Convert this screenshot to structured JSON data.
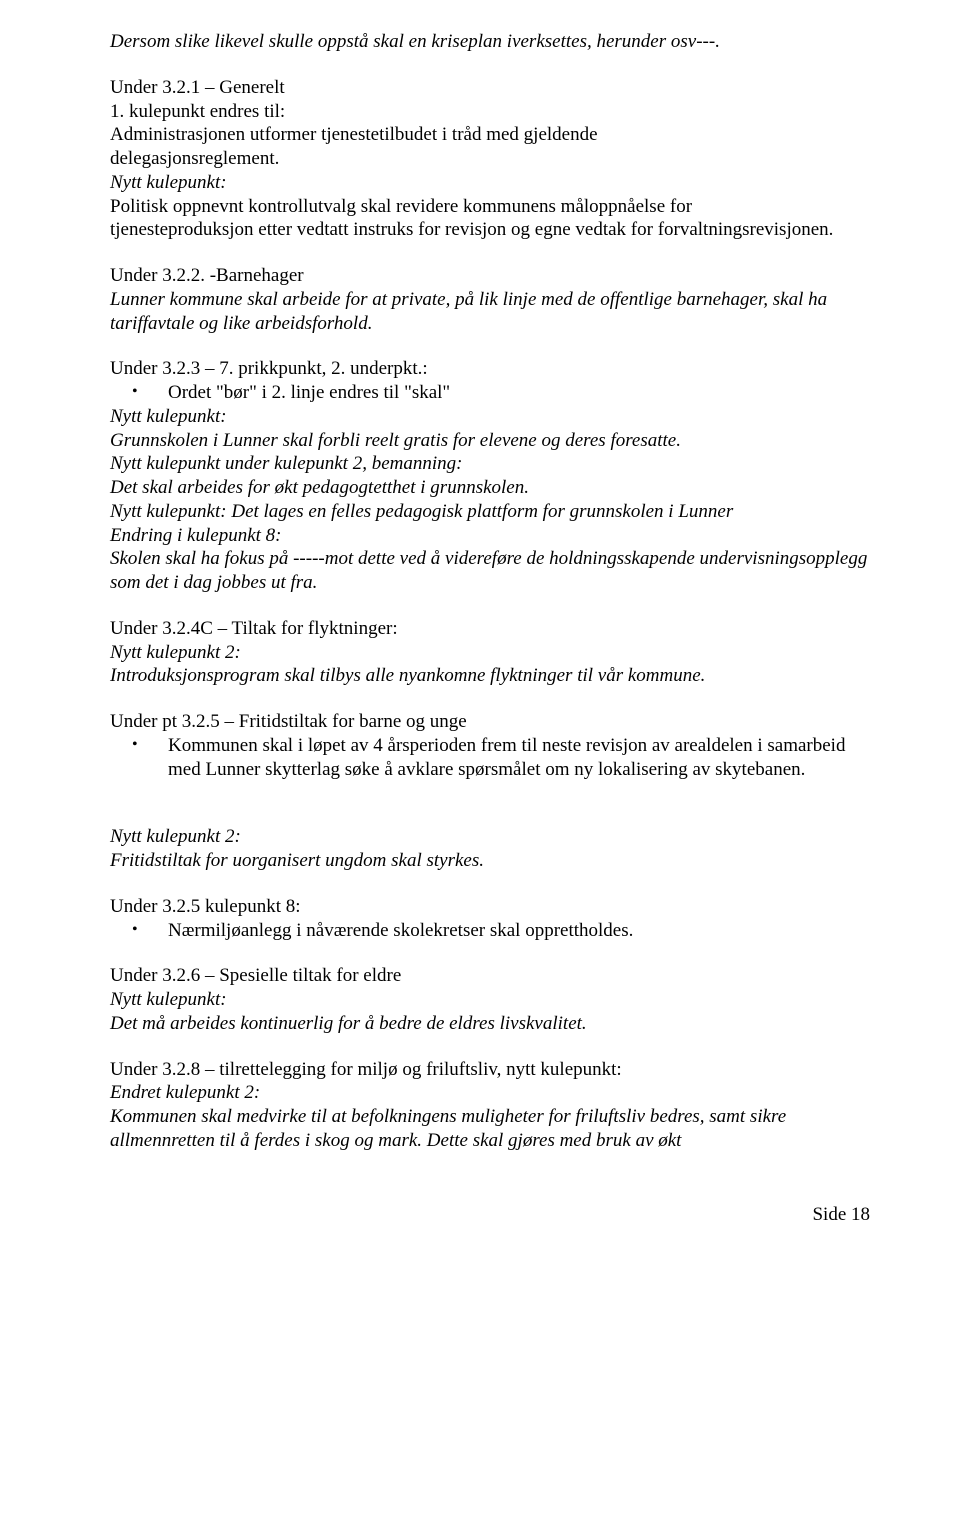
{
  "p0": "Dersom slike likevel skulle oppstå skal en kriseplan iverksettes, herunder osv---.",
  "h321": "Under 3.2.1 – Generelt",
  "p321a": "1. kulepunkt endres til:",
  "p321b": "Administrasjonen utformer tjenestetilbudet i tråd med gjeldende",
  "p321c": "delegasjonsreglement.",
  "p321d": "Nytt kulepunkt:",
  "p321e": "Politisk oppnevnt kontrollutvalg skal revidere kommunens måloppnåelse for",
  "p321f": "tjenesteproduksjon etter vedtatt instruks for revisjon og egne vedtak for forvaltningsrevisjonen.",
  "h322": "Under 3.2.2. -Barnehager",
  "p322a": "Lunner kommune skal arbeide for at private, på lik linje med de offentlige barnehager, skal ha tariffavtale og like arbeidsforhold.",
  "h323": "Under 3.2.3 – 7. prikkpunkt, 2. underpkt.:",
  "b323a": "Ordet \"bør\" i 2. linje endres til \"skal\"",
  "p323b": "Nytt kulepunkt:",
  "p323c": "Grunnskolen i Lunner skal forbli reelt gratis for elevene og deres foresatte.",
  "p323d": "Nytt kulepunkt under kulepunkt 2, bemanning:",
  "p323e": "Det skal arbeides for økt pedagogtetthet i grunnskolen.",
  "p323f": "Nytt kulepunkt:  Det lages en felles pedagogisk plattform for grunnskolen i Lunner",
  "p323g": "Endring i kulepunkt 8:",
  "p323h": "Skolen skal ha fokus på -----mot dette ved å videreføre de holdningsskapende undervisningsopplegg som det i dag jobbes ut fra.",
  "h324c": "Under 3.2.4C – Tiltak for flyktninger:",
  "p324ca": "Nytt kulepunkt 2:",
  "p324cb": "Introduksjonsprogram skal tilbys alle nyankomne flyktninger til vår kommune.",
  "h325a": "Under pt 3.2.5 – Fritidstiltak for barne og unge",
  "b325a": "Kommunen skal i løpet av 4 årsperioden frem til neste revisjon av arealdelen i samarbeid med Lunner skytterlag søke å avklare spørsmålet om ny lokalisering av skytebanen.",
  "p325b": "Nytt kulepunkt 2:",
  "p325c": "Fritidstiltak for uorganisert ungdom skal styrkes.",
  "h325k8": "Under 3.2.5 kulepunkt 8:",
  "b325k8": "Nærmiljøanlegg i nåværende skolekretser skal opprettholdes.",
  "h326": "Under 3.2.6 – Spesielle tiltak for eldre",
  "p326a": "Nytt kulepunkt:",
  "p326b": "Det må arbeides kontinuerlig for å bedre de eldres livskvalitet.",
  "h328": "Under 3.2.8 – tilrettelegging for miljø og friluftsliv, nytt kulepunkt:",
  "p328a": "Endret kulepunkt 2:",
  "p328b": "Kommunen skal medvirke til at befolkningens muligheter for friluftsliv bedres, samt sikre allmennretten til å ferdes i skog og mark. Dette skal gjøres med bruk av økt",
  "footer": "Side 18"
}
